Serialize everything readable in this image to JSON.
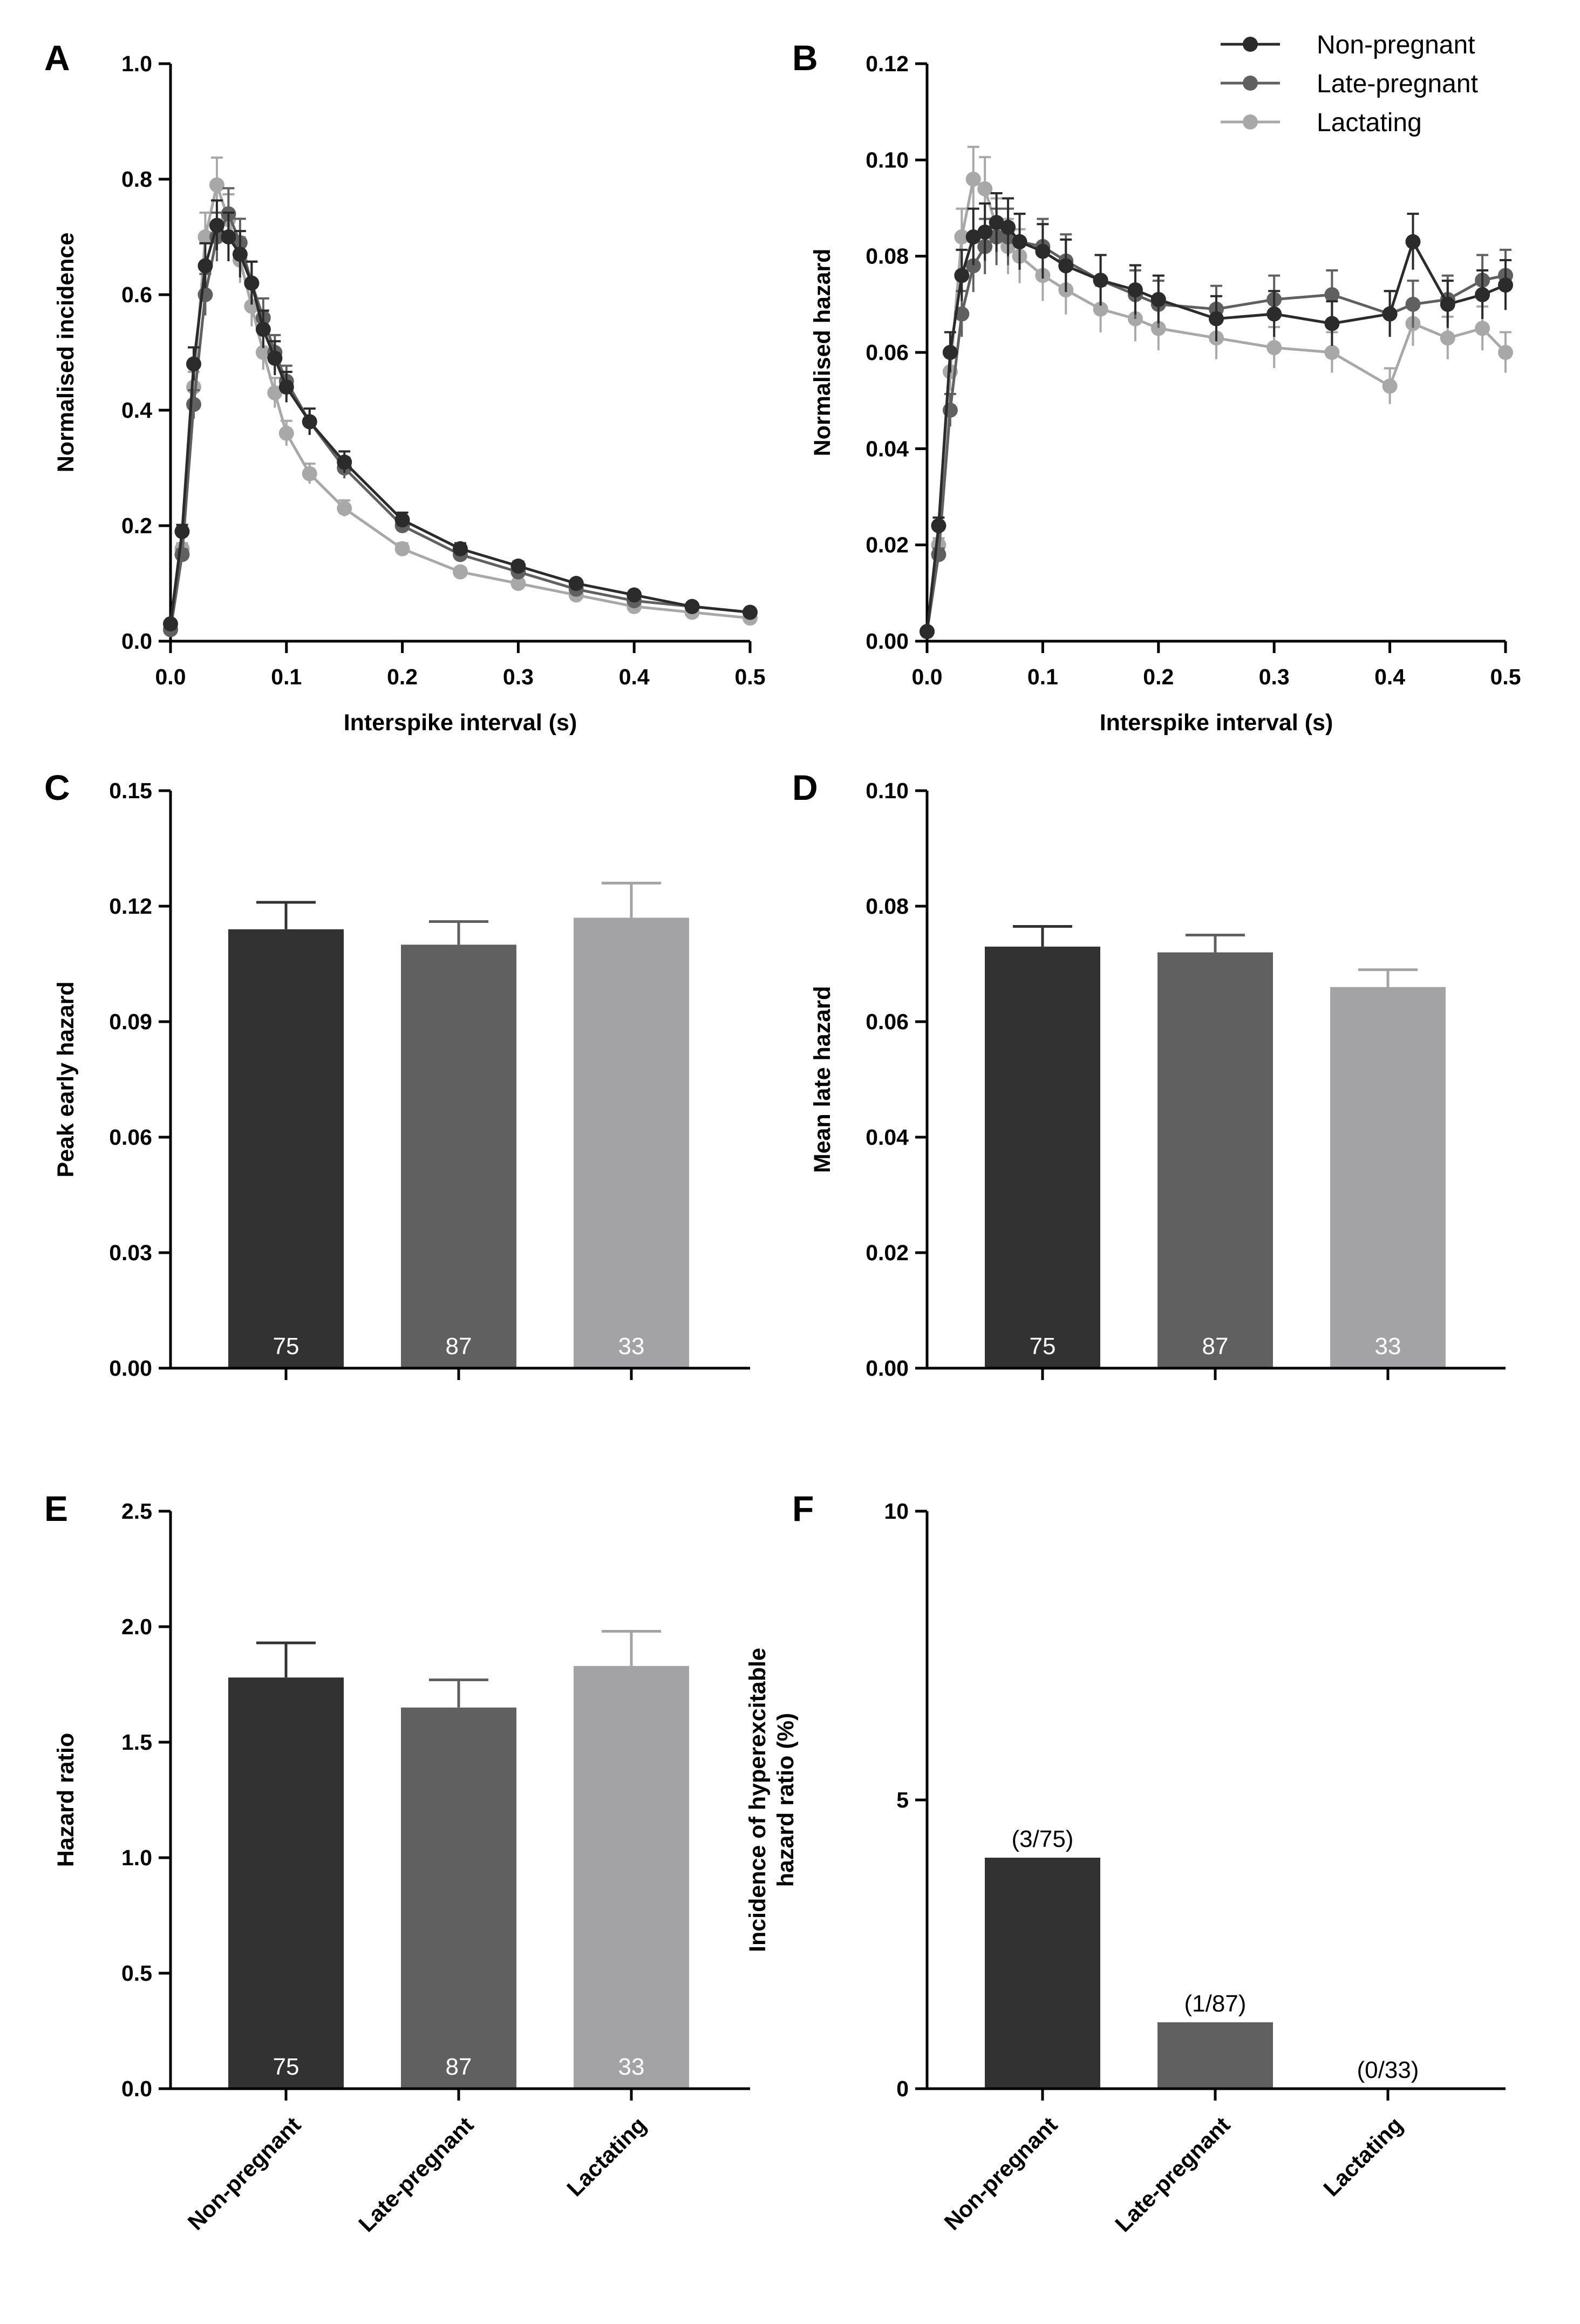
{
  "chart_data": [
    {
      "panel": "A",
      "type": "line",
      "xlabel": "Interspike interval (s)",
      "ylabel": "Normalised incidence",
      "xlim": [
        0,
        0.5
      ],
      "ylim": [
        0,
        1.0
      ],
      "xticks": [
        "0.0",
        "0.1",
        "0.2",
        "0.3",
        "0.4",
        "0.5"
      ],
      "yticks": [
        "0.0",
        "0.2",
        "0.4",
        "0.6",
        "0.8",
        "1.0"
      ],
      "series": [
        {
          "name": "Non-pregnant",
          "color": "#2b2b2b",
          "x": [
            0,
            0.01,
            0.02,
            0.03,
            0.04,
            0.05,
            0.06,
            0.07,
            0.08,
            0.09,
            0.1,
            0.12,
            0.15,
            0.2,
            0.25,
            0.3,
            0.35,
            0.4,
            0.45,
            0.5
          ],
          "y": [
            0.03,
            0.19,
            0.48,
            0.65,
            0.72,
            0.7,
            0.67,
            0.62,
            0.54,
            0.49,
            0.44,
            0.38,
            0.31,
            0.21,
            0.16,
            0.13,
            0.1,
            0.08,
            0.06,
            0.05
          ]
        },
        {
          "name": "Late-pregnant",
          "color": "#606060",
          "x": [
            0,
            0.01,
            0.02,
            0.03,
            0.04,
            0.05,
            0.06,
            0.07,
            0.08,
            0.09,
            0.1,
            0.12,
            0.15,
            0.2,
            0.25,
            0.3,
            0.35,
            0.4,
            0.45,
            0.5
          ],
          "y": [
            0.02,
            0.15,
            0.41,
            0.6,
            0.7,
            0.74,
            0.69,
            0.62,
            0.56,
            0.5,
            0.45,
            0.38,
            0.3,
            0.2,
            0.15,
            0.12,
            0.09,
            0.07,
            0.06,
            0.05
          ]
        },
        {
          "name": "Lactating",
          "color": "#a8a8a8",
          "x": [
            0,
            0.01,
            0.02,
            0.03,
            0.04,
            0.05,
            0.06,
            0.07,
            0.08,
            0.09,
            0.1,
            0.12,
            0.15,
            0.2,
            0.25,
            0.3,
            0.35,
            0.4,
            0.45,
            0.5
          ],
          "y": [
            0.02,
            0.16,
            0.44,
            0.7,
            0.79,
            0.73,
            0.66,
            0.58,
            0.5,
            0.43,
            0.36,
            0.29,
            0.23,
            0.16,
            0.12,
            0.1,
            0.08,
            0.06,
            0.05,
            0.04
          ]
        }
      ]
    },
    {
      "panel": "B",
      "type": "line",
      "xlabel": "Interspike interval (s)",
      "ylabel": "Normalised hazard",
      "xlim": [
        0,
        0.5
      ],
      "ylim": [
        0,
        0.12
      ],
      "xticks": [
        "0.0",
        "0.1",
        "0.2",
        "0.3",
        "0.4",
        "0.5"
      ],
      "yticks": [
        "0.00",
        "0.02",
        "0.04",
        "0.06",
        "0.08",
        "0.10",
        "0.12"
      ],
      "legend": [
        "Non-pregnant",
        "Late-pregnant",
        "Lactating"
      ],
      "legend_position": "top-right",
      "series": [
        {
          "name": "Non-pregnant",
          "color": "#2b2b2b",
          "x": [
            0,
            0.01,
            0.02,
            0.03,
            0.04,
            0.05,
            0.06,
            0.07,
            0.08,
            0.1,
            0.12,
            0.15,
            0.18,
            0.2,
            0.25,
            0.3,
            0.35,
            0.4,
            0.42,
            0.45,
            0.48,
            0.5
          ],
          "y": [
            0.002,
            0.024,
            0.06,
            0.076,
            0.084,
            0.085,
            0.087,
            0.086,
            0.083,
            0.081,
            0.078,
            0.075,
            0.073,
            0.071,
            0.067,
            0.068,
            0.066,
            0.068,
            0.083,
            0.07,
            0.072,
            0.074
          ]
        },
        {
          "name": "Late-pregnant",
          "color": "#606060",
          "x": [
            0,
            0.01,
            0.02,
            0.03,
            0.04,
            0.05,
            0.06,
            0.07,
            0.08,
            0.1,
            0.12,
            0.15,
            0.18,
            0.2,
            0.25,
            0.3,
            0.35,
            0.4,
            0.42,
            0.45,
            0.48,
            0.5
          ],
          "y": [
            0.002,
            0.018,
            0.048,
            0.068,
            0.078,
            0.082,
            0.084,
            0.084,
            0.083,
            0.082,
            0.079,
            0.075,
            0.072,
            0.07,
            0.069,
            0.071,
            0.072,
            0.068,
            0.07,
            0.071,
            0.075,
            0.076
          ]
        },
        {
          "name": "Lactating",
          "color": "#a8a8a8",
          "x": [
            0,
            0.01,
            0.02,
            0.03,
            0.04,
            0.05,
            0.06,
            0.07,
            0.08,
            0.1,
            0.12,
            0.15,
            0.18,
            0.2,
            0.25,
            0.3,
            0.35,
            0.4,
            0.42,
            0.45,
            0.48,
            0.5
          ],
          "y": [
            0.002,
            0.02,
            0.056,
            0.084,
            0.096,
            0.094,
            0.086,
            0.082,
            0.08,
            0.076,
            0.073,
            0.069,
            0.067,
            0.065,
            0.063,
            0.061,
            0.06,
            0.053,
            0.066,
            0.063,
            0.065,
            0.06
          ]
        }
      ]
    },
    {
      "panel": "C",
      "type": "bar",
      "ylabel": "Peak early hazard",
      "ylim": [
        0,
        0.15
      ],
      "yticks": [
        "0.00",
        "0.03",
        "0.06",
        "0.09",
        "0.12",
        "0.15"
      ],
      "categories": [
        "Non-pregnant",
        "Late-pregnant",
        "Lactating"
      ],
      "values": [
        0.114,
        0.11,
        0.117
      ],
      "errors": [
        0.007,
        0.006,
        0.009
      ],
      "n_labels": [
        "75",
        "87",
        "33"
      ]
    },
    {
      "panel": "D",
      "type": "bar",
      "ylabel": "Mean late hazard",
      "ylim": [
        0,
        0.1
      ],
      "yticks": [
        "0.00",
        "0.02",
        "0.04",
        "0.06",
        "0.08",
        "0.10"
      ],
      "categories": [
        "Non-pregnant",
        "Late-pregnant",
        "Lactating"
      ],
      "values": [
        0.073,
        0.072,
        0.066
      ],
      "errors": [
        0.0035,
        0.003,
        0.003
      ],
      "n_labels": [
        "75",
        "87",
        "33"
      ]
    },
    {
      "panel": "E",
      "type": "bar",
      "ylabel": "Hazard ratio",
      "ylim": [
        0,
        2.5
      ],
      "yticks": [
        "0.0",
        "0.5",
        "1.0",
        "1.5",
        "2.0",
        "2.5"
      ],
      "categories": [
        "Non-pregnant",
        "Late-pregnant",
        "Lactating"
      ],
      "values": [
        1.78,
        1.65,
        1.83
      ],
      "errors": [
        0.15,
        0.12,
        0.15
      ],
      "n_labels": [
        "75",
        "87",
        "33"
      ]
    },
    {
      "panel": "F",
      "type": "bar",
      "ylabel": "Incidence of hyperexcitable hazard ratio (%)",
      "ylabel_lines": [
        "Incidence of hyperexcitable",
        "hazard ratio (%)"
      ],
      "ylim": [
        0,
        10
      ],
      "yticks": [
        "0",
        "5",
        "10"
      ],
      "categories": [
        "Non-pregnant",
        "Late-pregnant",
        "Lactating"
      ],
      "values": [
        4.0,
        1.15,
        0
      ],
      "fraction_labels": [
        "(3/75)",
        "(1/87)",
        "(0/33)"
      ]
    }
  ],
  "colors": {
    "non_pregnant": "#323232",
    "late_pregnant": "#606060",
    "lactating": "#a3a3a6"
  }
}
